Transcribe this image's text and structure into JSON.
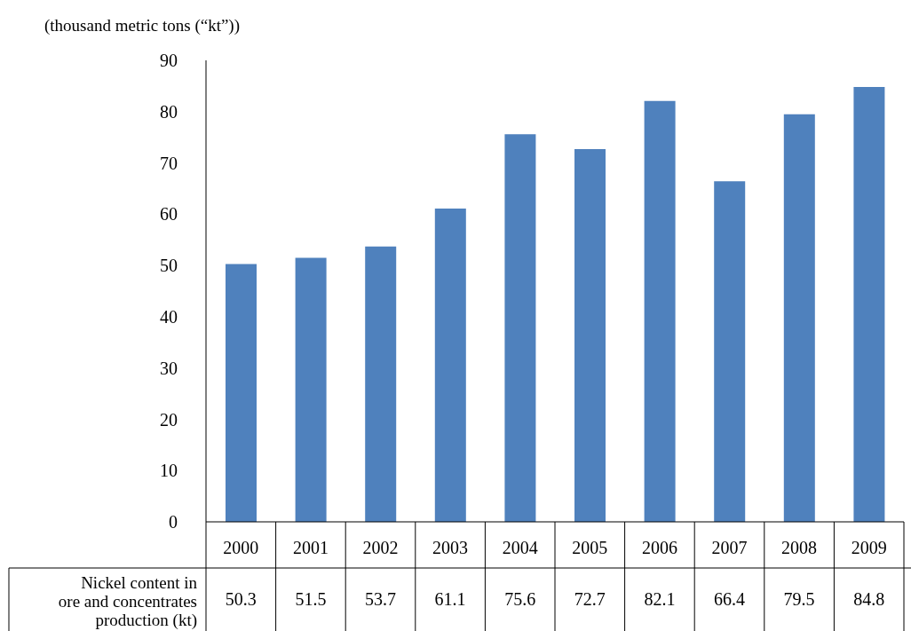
{
  "chart_data": {
    "type": "bar",
    "ylabel": "(thousand metric tons (“kt”))",
    "categories": [
      "2000",
      "2001",
      "2002",
      "2003",
      "2004",
      "2005",
      "2006",
      "2007",
      "2008",
      "2009"
    ],
    "series": [
      {
        "name": "Nickel content in\nore and concentrates\nproduction (kt)",
        "color": "#4f81bd",
        "values": [
          50.3,
          51.5,
          53.7,
          61.1,
          75.6,
          72.7,
          82.1,
          66.4,
          79.5,
          84.8
        ]
      }
    ],
    "ylim": [
      0,
      90
    ],
    "yticks": [
      0,
      10,
      20,
      30,
      40,
      50,
      60,
      70,
      80,
      90
    ],
    "grid": false,
    "data_labels": true
  }
}
